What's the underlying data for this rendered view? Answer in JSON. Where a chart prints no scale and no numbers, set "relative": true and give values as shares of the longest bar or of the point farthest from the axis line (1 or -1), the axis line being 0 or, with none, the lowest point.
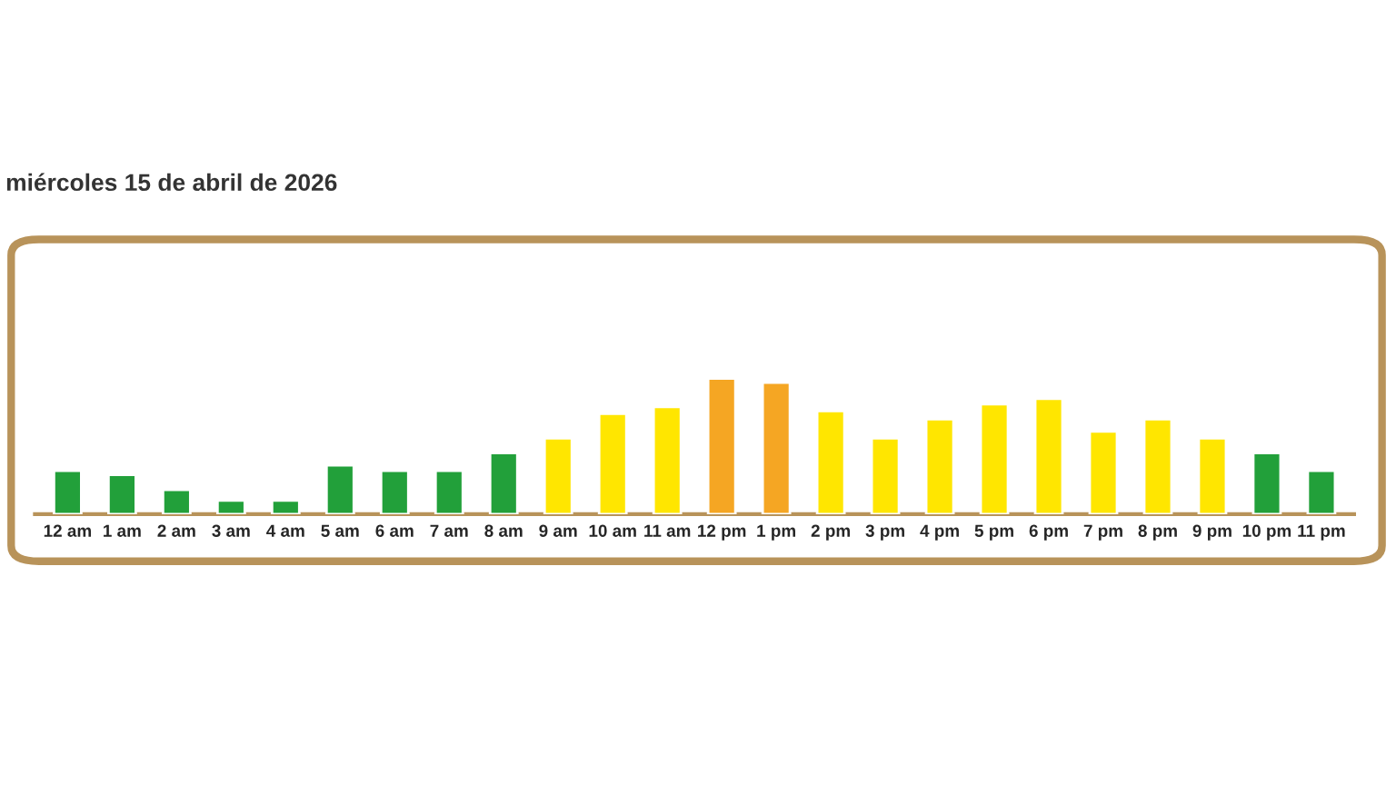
{
  "chart_data": {
    "type": "bar",
    "title": "miércoles 15 de abril de 2026",
    "relative": true,
    "categories": [
      "12 am",
      "1 am",
      "2 am",
      "3 am",
      "4 am",
      "5 am",
      "6 am",
      "7 am",
      "8 am",
      "9 am",
      "10 am",
      "11 am",
      "12 pm",
      "1 pm",
      "2 pm",
      "3 pm",
      "4 pm",
      "5 pm",
      "6 pm",
      "7 pm",
      "8 pm",
      "9 pm",
      "10 pm",
      "11 pm"
    ],
    "values": [
      0.32,
      0.29,
      0.18,
      0.1,
      0.1,
      0.36,
      0.32,
      0.32,
      0.45,
      0.56,
      0.74,
      0.79,
      1.0,
      0.97,
      0.76,
      0.56,
      0.7,
      0.81,
      0.85,
      0.61,
      0.7,
      0.56,
      0.45,
      0.32
    ],
    "colors": [
      "#22a03a",
      "#22a03a",
      "#22a03a",
      "#22a03a",
      "#22a03a",
      "#22a03a",
      "#22a03a",
      "#22a03a",
      "#22a03a",
      "#ffe600",
      "#ffe600",
      "#ffe600",
      "#f5a623",
      "#f5a623",
      "#ffe600",
      "#ffe600",
      "#ffe600",
      "#ffe600",
      "#ffe600",
      "#ffe600",
      "#ffe600",
      "#ffe600",
      "#22a03a",
      "#22a03a"
    ]
  }
}
